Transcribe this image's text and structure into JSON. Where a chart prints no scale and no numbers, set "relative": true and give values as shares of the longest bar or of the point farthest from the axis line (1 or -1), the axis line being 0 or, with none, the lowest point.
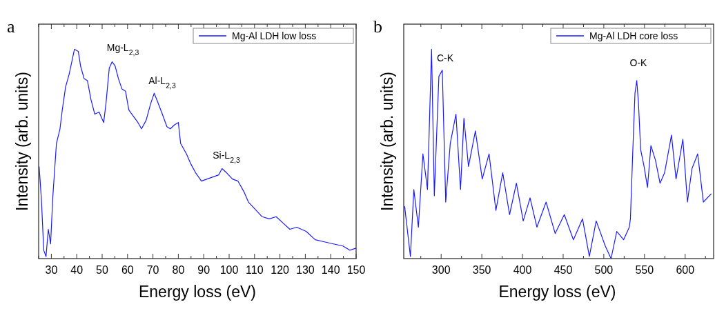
{
  "chart_data": [
    {
      "type": "line",
      "title": "a",
      "xlabel": "Energy loss (eV)",
      "ylabel": "Intensity (arb. units)",
      "relative": true,
      "xlim": [
        25,
        150
      ],
      "xticks": [
        30,
        40,
        50,
        60,
        70,
        80,
        90,
        100,
        110,
        120,
        130,
        140,
        150
      ],
      "legend": "top right",
      "marker": "none",
      "line_style": "solid",
      "series": [
        {
          "name": "Mg-Al LDH low loss",
          "color": "#1a1aff",
          "x": [
            25.2,
            26.1,
            27,
            27.9,
            28.8,
            29.7,
            30.6,
            32,
            33.4,
            34.3,
            35.6,
            37,
            39.1,
            40.6,
            41.5,
            42.9,
            44.2,
            45.6,
            47.1,
            48.8,
            50.6,
            51.5,
            52.8,
            53.9,
            55.1,
            56.4,
            57.8,
            59.2,
            60.5,
            62.3,
            64.1,
            65.5,
            67.3,
            69.1,
            70.5,
            71.8,
            73.7,
            75.5,
            76.8,
            78.6,
            80,
            80.9,
            83.2,
            85,
            86.8,
            89.1,
            91.3,
            93.6,
            95.9,
            97.2,
            99,
            101.3,
            103.5,
            105.8,
            107.6,
            109.9,
            113,
            115.8,
            118.5,
            121.2,
            123.9,
            126.6,
            130.3,
            133.9,
            137.5,
            141.1,
            144.8,
            147.5,
            150
          ],
          "values": [
            0.44,
            0.28,
            0.04,
            0.01,
            0.14,
            0.07,
            0.3,
            0.55,
            0.62,
            0.71,
            0.82,
            0.88,
            1,
            0.99,
            0.92,
            0.86,
            0.85,
            0.76,
            0.69,
            0.7,
            0.65,
            0.74,
            0.91,
            0.94,
            0.92,
            0.86,
            0.81,
            0.8,
            0.71,
            0.68,
            0.65,
            0.62,
            0.66,
            0.74,
            0.79,
            0.75,
            0.69,
            0.63,
            0.62,
            0.64,
            0.65,
            0.55,
            0.5,
            0.45,
            0.41,
            0.37,
            0.38,
            0.39,
            0.4,
            0.43,
            0.41,
            0.38,
            0.37,
            0.32,
            0.27,
            0.24,
            0.2,
            0.19,
            0.2,
            0.17,
            0.14,
            0.15,
            0.13,
            0.09,
            0.08,
            0.07,
            0.06,
            0.04,
            0.05
          ]
        }
      ],
      "annotations": [
        "Mg-L$_{2,3}$",
        "Al-L$_{2,3}$",
        "Si-L$_{2,3}$"
      ]
    },
    {
      "type": "line",
      "title": "b",
      "xlabel": "Energy loss (eV)",
      "ylabel": "Intensity (arb. units)",
      "relative": true,
      "xlim": [
        254,
        635
      ],
      "xticks": [
        300,
        350,
        400,
        450,
        500,
        550,
        600
      ],
      "legend": "top right",
      "marker": "none",
      "line_style": "solid",
      "series": [
        {
          "name": "Mg-Al LDH core loss",
          "color": "#1a1aff",
          "x": [
            255.1,
            262.2,
            266.4,
            272,
            277.6,
            283.2,
            288.2,
            291.6,
            297.2,
            301.4,
            305.6,
            311.2,
            318.2,
            323.8,
            328,
            333.6,
            342.1,
            350.5,
            358.9,
            367.3,
            375.7,
            384.1,
            392.5,
            400.9,
            409.3,
            417.7,
            429,
            440.2,
            451.4,
            462.6,
            473.8,
            482.2,
            490.6,
            501.8,
            508.9,
            515.9,
            524.3,
            531.3,
            532.7,
            535.5,
            538.3,
            540.5,
            542.5,
            545.3,
            549.5,
            553.7,
            557.9,
            563.5,
            569.1,
            574.7,
            583.2,
            588.8,
            597.2,
            602.8,
            608.4,
            615.4,
            622.4,
            632.2
          ],
          "values": [
            0.25,
            0.01,
            0.33,
            0.15,
            0.5,
            0.33,
            1,
            0.3,
            0.87,
            0.9,
            0.27,
            0.55,
            0.69,
            0.33,
            0.67,
            0.44,
            0.61,
            0.38,
            0.5,
            0.23,
            0.41,
            0.21,
            0.36,
            0.18,
            0.29,
            0.15,
            0.27,
            0.12,
            0.21,
            0.09,
            0.19,
            0.01,
            0.18,
            0.06,
            0,
            0.13,
            0.09,
            0.15,
            0.19,
            0.5,
            0.79,
            0.85,
            0.75,
            0.52,
            0.44,
            0.34,
            0.54,
            0.47,
            0.36,
            0.41,
            0.59,
            0.38,
            0.57,
            0.27,
            0.43,
            0.5,
            0.27,
            0.31
          ]
        }
      ],
      "annotations": [
        "C-K",
        "O-K"
      ]
    }
  ]
}
